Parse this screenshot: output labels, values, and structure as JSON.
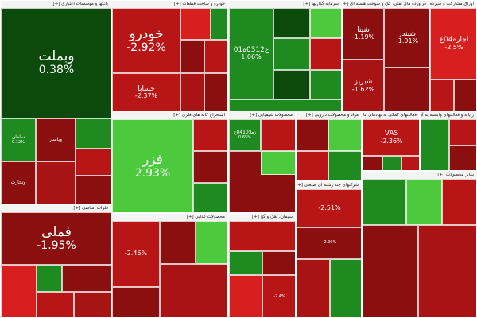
{
  "chart_data": {
    "type": "treemap",
    "colors": {
      "deep_red": "#8b0f0f",
      "red": "#b81616",
      "bright_red": "#d81f1f",
      "dark_green": "#0c4a0c",
      "green": "#1f8a1f",
      "bright_green": "#4cc93c",
      "header_bg": "#f4f4f4"
    },
    "sectors": [
      {
        "name": "بانکها و موسسات اعتباری [+]",
        "tiles": [
          {
            "symbol": "وبملت",
            "change": "0.38%",
            "direction": "up"
          },
          {
            "symbol": "سامان",
            "change": "0.12%",
            "direction": "up"
          },
          {
            "symbol": "وپاسار",
            "change": "",
            "direction": "down"
          },
          {
            "symbol": "",
            "change": "",
            "direction": "up"
          },
          {
            "symbol": "وتجارت",
            "change": "",
            "direction": "down"
          },
          {
            "symbol": "",
            "change": "",
            "direction": "down"
          },
          {
            "symbol": "",
            "change": "",
            "direction": "down"
          },
          {
            "symbol": "",
            "change": "",
            "direction": "down"
          }
        ]
      },
      {
        "name": "خودرو و ساخت قطعات [+]",
        "tiles": [
          {
            "symbol": "خودرو",
            "change": "-2.92%",
            "direction": "down"
          },
          {
            "symbol": "خساپا",
            "change": "-2.37%",
            "direction": "down"
          },
          {
            "symbol": "",
            "change": "",
            "direction": "down"
          },
          {
            "symbol": "",
            "change": "",
            "direction": "up"
          },
          {
            "symbol": "",
            "change": "",
            "direction": "down"
          },
          {
            "symbol": "",
            "change": "",
            "direction": "down"
          },
          {
            "symbol": "",
            "change": "",
            "direction": "down"
          },
          {
            "symbol": "",
            "change": "",
            "direction": "down"
          }
        ]
      },
      {
        "name": "سرمایه گذاریها [+]",
        "tiles": [
          {
            "symbol": "ع0312ه01",
            "change": "1.06%",
            "direction": "up"
          },
          {
            "symbol": "",
            "change": "",
            "direction": "up"
          },
          {
            "symbol": "",
            "change": "",
            "direction": "up"
          },
          {
            "symbol": "",
            "change": "",
            "direction": "up"
          },
          {
            "symbol": "",
            "change": "",
            "direction": "down"
          },
          {
            "symbol": "",
            "change": "",
            "direction": "up"
          },
          {
            "symbol": "",
            "change": "",
            "direction": "up"
          }
        ]
      },
      {
        "name": "فراورده های نفتی، کک و سوخت هسته ای [+]",
        "tiles": [
          {
            "symbol": "شپنا",
            "change": "-1.19%",
            "direction": "down"
          },
          {
            "symbol": "شبندر",
            "change": "-1.91%",
            "direction": "down"
          },
          {
            "symbol": "شبریز",
            "change": "-1.62%",
            "direction": "down"
          },
          {
            "symbol": "",
            "change": "",
            "direction": "down"
          }
        ]
      },
      {
        "name": "اوراق مشارکت و سپرده های بانکی [+]",
        "tiles": [
          {
            "symbol": "اجاره04ع",
            "change": "-2.5%",
            "direction": "down"
          },
          {
            "symbol": "",
            "change": "",
            "direction": "down"
          },
          {
            "symbol": "",
            "change": "",
            "direction": "down"
          }
        ]
      },
      {
        "name": "استخراج کانه های فلزی [+]",
        "tiles": [
          {
            "symbol": "فزر",
            "change": "2.93%",
            "direction": "up"
          },
          {
            "symbol": "",
            "change": "",
            "direction": "down"
          },
          {
            "symbol": "",
            "change": "",
            "direction": "down"
          },
          {
            "symbol": "",
            "change": "",
            "direction": "up"
          }
        ]
      },
      {
        "name": "محصولات شیمیایی [+]",
        "tiles": [
          {
            "symbol": "زملا0410ح",
            "change": "0.65%",
            "direction": "up"
          },
          {
            "symbol": "",
            "change": "",
            "direction": "down"
          },
          {
            "symbol": "",
            "change": "",
            "direction": "down"
          },
          {
            "symbol": "",
            "change": "",
            "direction": "up"
          }
        ]
      },
      {
        "name": "مواد و محصولات دارویی [+]",
        "tiles": [
          {
            "symbol": "",
            "change": "",
            "direction": "down"
          },
          {
            "symbol": "",
            "change": "",
            "direction": "up"
          },
          {
            "symbol": "",
            "change": "",
            "direction": "down"
          },
          {
            "symbol": "",
            "change": "",
            "direction": "up"
          }
        ]
      },
      {
        "name": "فعالیتهای کمکی به نهادهای مالی [+]",
        "tiles": [
          {
            "symbol": "VAS",
            "change": "-2.36%",
            "direction": "down"
          },
          {
            "symbol": "",
            "change": "",
            "direction": "down"
          },
          {
            "symbol": "",
            "change": "",
            "direction": "up"
          },
          {
            "symbol": "",
            "change": "",
            "direction": "down"
          }
        ]
      },
      {
        "name": "رایانه و فعالیتهای وابسته به آن [+]",
        "tiles": [
          {
            "symbol": "",
            "change": "",
            "direction": "up"
          },
          {
            "symbol": "",
            "change": "",
            "direction": "down"
          },
          {
            "symbol": "",
            "change": "",
            "direction": "down"
          }
        ]
      },
      {
        "name": "فلزات اساسی [+]",
        "tiles": [
          {
            "symbol": "فملی",
            "change": "-1.95%",
            "direction": "down"
          },
          {
            "symbol": "",
            "change": "",
            "direction": "down"
          },
          {
            "symbol": "",
            "change": "",
            "direction": "up"
          },
          {
            "symbol": "",
            "change": "",
            "direction": "down"
          },
          {
            "symbol": "",
            "change": "",
            "direction": "down"
          },
          {
            "symbol": "",
            "change": "",
            "direction": "down"
          }
        ]
      },
      {
        "name": "محصولات غذایی [+]",
        "tiles": [
          {
            "symbol": "",
            "change": "-2.46%",
            "direction": "down"
          },
          {
            "symbol": "",
            "change": "",
            "direction": "down"
          },
          {
            "symbol": "",
            "change": "",
            "direction": "up"
          },
          {
            "symbol": "",
            "change": "",
            "direction": "down"
          },
          {
            "symbol": "",
            "change": "",
            "direction": "down"
          }
        ]
      },
      {
        "name": "سیمان، آهک و گچ [+]",
        "tiles": [
          {
            "symbol": "",
            "change": "",
            "direction": "down"
          },
          {
            "symbol": "",
            "change": "",
            "direction": "up"
          },
          {
            "symbol": "",
            "change": "",
            "direction": "down"
          },
          {
            "symbol": "",
            "change": "",
            "direction": "down"
          },
          {
            "symbol": "",
            "change": "-2.4%",
            "direction": "down"
          },
          {
            "symbol": "",
            "change": "",
            "direction": "down"
          }
        ]
      },
      {
        "name": "شرکتهای چند رشته ای صنعتی [+]",
        "tiles": [
          {
            "symbol": "",
            "change": "-2.51%",
            "direction": "down"
          },
          {
            "symbol": "",
            "change": "-2.99%",
            "direction": "down"
          },
          {
            "symbol": "",
            "change": "",
            "direction": "down"
          },
          {
            "symbol": "",
            "change": "",
            "direction": "up"
          }
        ]
      },
      {
        "name": "سایر محصولات [+]",
        "tiles": [
          {
            "symbol": "",
            "change": "",
            "direction": "up"
          },
          {
            "symbol": "",
            "change": "",
            "direction": "up"
          },
          {
            "symbol": "",
            "change": "",
            "direction": "down"
          },
          {
            "symbol": "",
            "change": "",
            "direction": "down"
          },
          {
            "symbol": "",
            "change": "",
            "direction": "down"
          }
        ]
      }
    ]
  }
}
